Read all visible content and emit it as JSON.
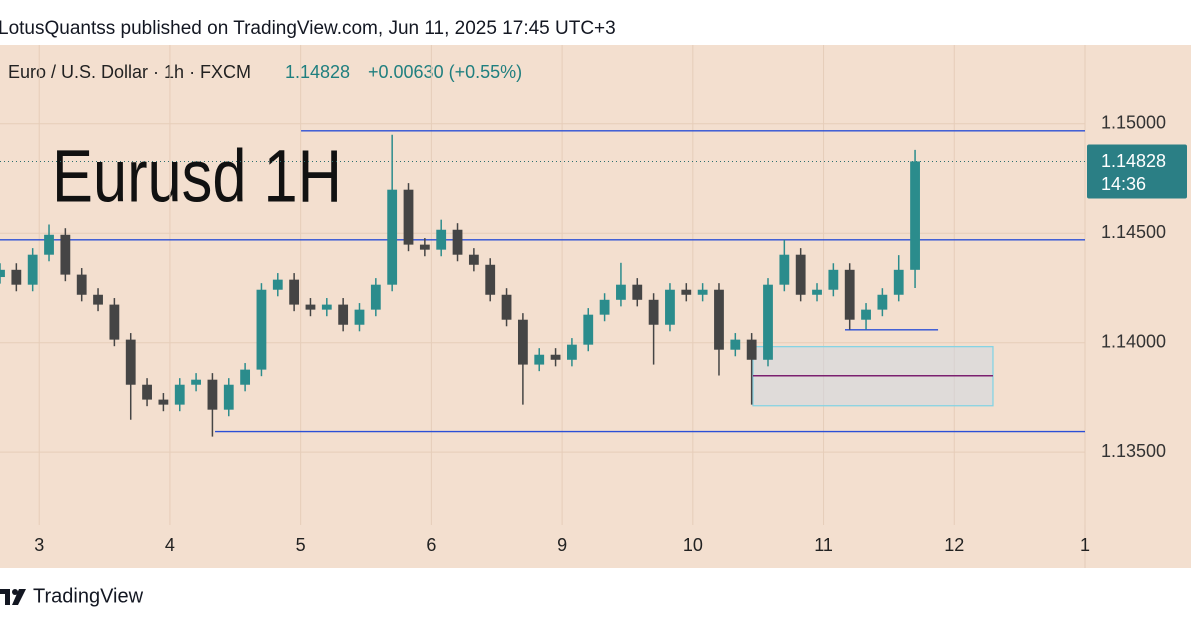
{
  "header": {
    "published": "LotusQuantss published on TradingView.com, Jun 11, 2025 17:45 UTC+3"
  },
  "chart_data": {
    "type": "candlestick",
    "symbol": "Euro / U.S. Dollar · 1h · FXCM",
    "last_price": 1.14828,
    "change": "+0.00630 (+0.55%)",
    "countdown": "14:36",
    "annotation": "Eurusd 1H",
    "up_color": "#2b8c8c",
    "down_color": "#454545",
    "grid": true,
    "xlim": [
      -0.3,
      8
    ],
    "xticks": [
      {
        "value": 0,
        "label": "3"
      },
      {
        "value": 1,
        "label": "4"
      },
      {
        "value": 2,
        "label": "5"
      },
      {
        "value": 3,
        "label": "6"
      },
      {
        "value": 4,
        "label": "9"
      },
      {
        "value": 5,
        "label": "10"
      },
      {
        "value": 6,
        "label": "11"
      },
      {
        "value": 7,
        "label": "12"
      },
      {
        "value": 8,
        "label": "1"
      }
    ],
    "ylim": [
      1.1319,
      1.1536
    ],
    "yticks": [
      {
        "value": 1.135,
        "label": "1.13500"
      },
      {
        "value": 1.14,
        "label": "1.14000"
      },
      {
        "value": 1.145,
        "label": "1.14500"
      },
      {
        "value": 1.15,
        "label": "1.15000"
      }
    ],
    "x": [
      -0.3,
      -0.175,
      -0.05,
      0.075,
      0.2,
      0.325,
      0.45,
      0.575,
      0.7,
      0.825,
      0.95,
      1.075,
      1.2,
      1.325,
      1.45,
      1.575,
      1.7,
      1.825,
      1.95,
      2.075,
      2.2,
      2.325,
      2.45,
      2.575,
      2.7,
      2.825,
      2.95,
      3.075,
      3.2,
      3.325,
      3.45,
      3.575,
      3.7,
      3.825,
      3.95,
      4.075,
      4.2,
      4.325,
      4.45,
      4.575,
      4.7,
      4.825,
      4.95,
      5.075,
      5.2,
      5.325,
      5.45,
      5.575,
      5.7,
      5.825,
      5.95,
      6.075,
      6.2,
      6.325,
      6.45,
      6.575,
      6.7
    ],
    "open": [
      1.143,
      1.14333,
      1.14265,
      1.14402,
      1.14493,
      1.14311,
      1.14219,
      1.14174,
      1.14014,
      1.13808,
      1.1374,
      1.13717,
      1.13808,
      1.13831,
      1.13694,
      1.13808,
      1.13877,
      1.14242,
      1.14288,
      1.14174,
      1.14151,
      1.14174,
      1.14082,
      1.14151,
      1.14265,
      1.14699,
      1.14448,
      1.14425,
      1.14516,
      1.14402,
      1.14356,
      1.14219,
      1.14105,
      1.139,
      1.13945,
      1.13922,
      1.13991,
      1.14128,
      1.14196,
      1.14265,
      1.14196,
      1.14082,
      1.14242,
      1.14219,
      1.14242,
      1.13968,
      1.14014,
      1.13922,
      1.14265,
      1.14402,
      1.14219,
      1.14242,
      1.14333,
      1.14105,
      1.14151,
      1.14219,
      1.14333
    ],
    "high": [
      1.14363,
      1.14363,
      1.14432,
      1.1454,
      1.14523,
      1.14341,
      1.14249,
      1.14204,
      1.14044,
      1.13838,
      1.1377,
      1.13838,
      1.13861,
      1.13861,
      1.13838,
      1.13907,
      1.14272,
      1.14318,
      1.14318,
      1.14204,
      1.14204,
      1.14204,
      1.14181,
      1.14295,
      1.1495,
      1.14729,
      1.14478,
      1.14562,
      1.14546,
      1.14432,
      1.14386,
      1.14249,
      1.14135,
      1.13975,
      1.13975,
      1.14021,
      1.14158,
      1.14226,
      1.14365,
      1.14295,
      1.14226,
      1.14272,
      1.14272,
      1.14272,
      1.14272,
      1.14044,
      1.14044,
      1.14295,
      1.1447,
      1.14432,
      1.14272,
      1.14363,
      1.14363,
      1.14181,
      1.14249,
      1.144,
      1.14881
    ],
    "low": [
      1.1427,
      1.14235,
      1.14235,
      1.14372,
      1.14281,
      1.14189,
      1.14144,
      1.13984,
      1.13648,
      1.1371,
      1.13687,
      1.13687,
      1.13778,
      1.13571,
      1.13664,
      1.13778,
      1.13847,
      1.14212,
      1.14144,
      1.14121,
      1.14121,
      1.14052,
      1.14052,
      1.14121,
      1.14235,
      1.14418,
      1.14395,
      1.14395,
      1.14372,
      1.14326,
      1.14189,
      1.14075,
      1.13717,
      1.1387,
      1.13892,
      1.13892,
      1.13961,
      1.14098,
      1.14166,
      1.14166,
      1.139,
      1.14052,
      1.14189,
      1.14189,
      1.1385,
      1.13938,
      1.13717,
      1.13892,
      1.14235,
      1.14189,
      1.14189,
      1.14212,
      1.1406,
      1.1406,
      1.14121,
      1.14189,
      1.1425
    ],
    "close": [
      1.14333,
      1.14265,
      1.14402,
      1.14493,
      1.14311,
      1.14219,
      1.14174,
      1.14014,
      1.13808,
      1.1374,
      1.13717,
      1.13808,
      1.13831,
      1.13694,
      1.13808,
      1.13877,
      1.14242,
      1.14288,
      1.14174,
      1.14151,
      1.14174,
      1.14082,
      1.14151,
      1.14265,
      1.14699,
      1.14448,
      1.14425,
      1.14516,
      1.14402,
      1.14356,
      1.14219,
      1.14105,
      1.139,
      1.13945,
      1.13922,
      1.13991,
      1.14128,
      1.14196,
      1.14265,
      1.14196,
      1.14082,
      1.14242,
      1.14219,
      1.14242,
      1.13968,
      1.14014,
      1.13922,
      1.14265,
      1.14402,
      1.14219,
      1.14242,
      1.14333,
      1.14105,
      1.14151,
      1.14219,
      1.14333,
      1.14828
    ],
    "levels": [
      {
        "price": 1.14968,
        "x": [
          2.003,
          8
        ]
      },
      {
        "price": 1.1447,
        "x": [
          -0.3,
          8
        ]
      },
      {
        "price": 1.13594,
        "x": [
          1.345,
          8
        ]
      },
      {
        "price": 1.14059,
        "x": [
          6.164,
          6.876
        ]
      }
    ],
    "zone": {
      "top": 1.13982,
      "bottom": 1.13712,
      "mid": 1.13849,
      "x": [
        5.46,
        7.296
      ]
    }
  },
  "footer": {
    "brand": "TradingView"
  }
}
